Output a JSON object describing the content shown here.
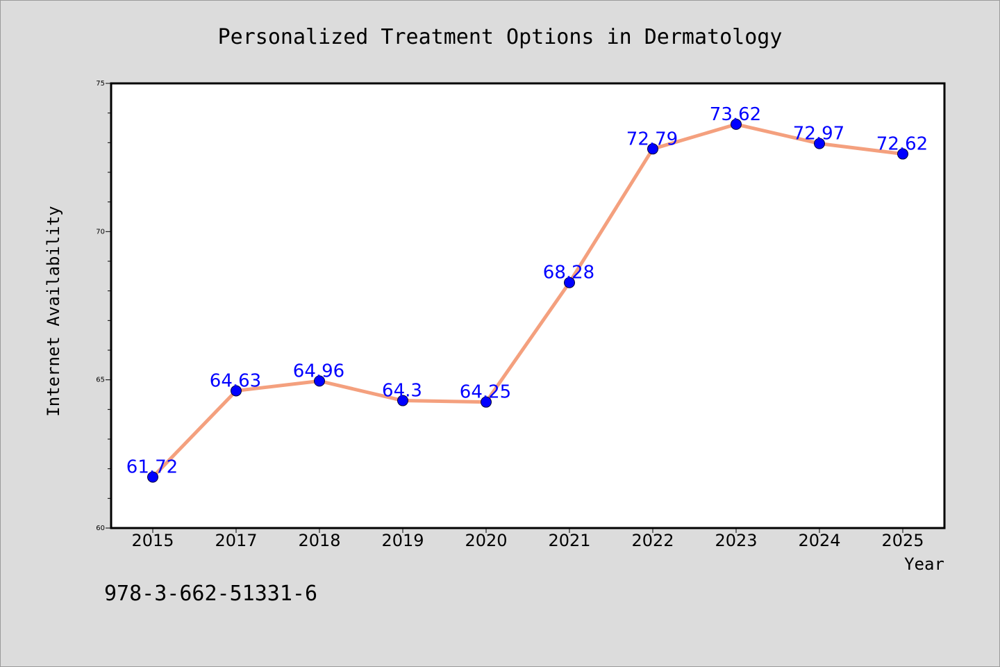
{
  "chart_data": {
    "type": "line",
    "title": "Personalized Treatment Options in Dermatology",
    "xlabel": "Year",
    "ylabel": "Internet Availability",
    "categories": [
      "2015",
      "2017",
      "2018",
      "2019",
      "2020",
      "2021",
      "2022",
      "2023",
      "2024",
      "2025"
    ],
    "series": [
      {
        "values": [
          61.72,
          64.63,
          64.96,
          64.3,
          64.25,
          68.28,
          72.79,
          73.62,
          72.97,
          72.62
        ],
        "labels": [
          "61.72",
          "64.63",
          "64.96",
          "64.3",
          "64.25",
          "68.28",
          "72.79",
          "73.62",
          "72.97",
          "72.62"
        ],
        "line_color": "#f4a07e",
        "marker_color": "#0000ff",
        "label_color": "#0000ff"
      }
    ],
    "ylim": [
      60,
      75
    ],
    "y_ticks": [
      "60",
      "65",
      "70",
      "75"
    ],
    "grid": false,
    "legend": "none"
  },
  "footer": {
    "isbn": "978-3-662-51331-6"
  },
  "colors": {
    "background": "#dcdcdc",
    "plot_background": "#ffffff",
    "axis": "#000000"
  }
}
